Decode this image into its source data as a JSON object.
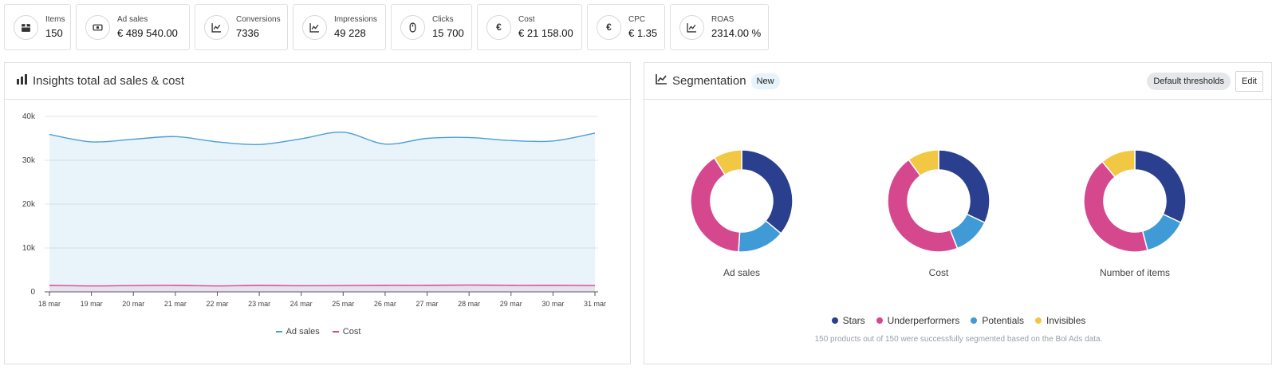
{
  "kpis": [
    {
      "icon": "items-box-icon",
      "label": "Items",
      "value": "150"
    },
    {
      "icon": "ad-sales-money-icon",
      "label": "Ad sales",
      "value": "€ 489 540.00"
    },
    {
      "icon": "conversions-trend-icon",
      "label": "Conversions",
      "value": "7336"
    },
    {
      "icon": "impressions-trend-icon",
      "label": "Impressions",
      "value": "49 228"
    },
    {
      "icon": "mouse-icon",
      "label": "Clicks",
      "value": "15 700"
    },
    {
      "icon": "euro-icon",
      "label": "Cost",
      "value": "€ 21 158.00"
    },
    {
      "icon": "euro-icon",
      "label": "CPC",
      "value": "€ 1.35"
    },
    {
      "icon": "roas-trend-icon",
      "label": "ROAS",
      "value": "2314.00 %"
    }
  ],
  "insights": {
    "title": "Insights total ad sales & cost"
  },
  "segmentation": {
    "title": "Segmentation",
    "badge": "New",
    "thresholds_label": "Default thresholds",
    "edit_label": "Edit",
    "legend": [
      {
        "name": "Stars",
        "color": "#2b3f8f"
      },
      {
        "name": "Underperformers",
        "color": "#d6488e"
      },
      {
        "name": "Potentials",
        "color": "#3f9ad6"
      },
      {
        "name": "Invisibles",
        "color": "#f2c744"
      }
    ],
    "note": "150 products out of 150 were successfully segmented based on the Bol Ads data."
  },
  "chart_data": [
    {
      "type": "area",
      "title": "",
      "categories": [
        "18 mar",
        "19 mar",
        "20 mar",
        "21 mar",
        "22 mar",
        "23 mar",
        "24 mar",
        "25 mar",
        "26 mar",
        "27 mar",
        "28 mar",
        "29 mar",
        "30 mar",
        "31 mar"
      ],
      "series": [
        {
          "name": "Ad sales",
          "color": "#4a9fd8",
          "values": [
            35900,
            34200,
            34800,
            35400,
            34200,
            33600,
            34900,
            36400,
            33700,
            35000,
            35200,
            34500,
            34400,
            36200
          ]
        },
        {
          "name": "Cost",
          "color": "#d6488e",
          "values": [
            1500,
            1350,
            1450,
            1500,
            1350,
            1500,
            1400,
            1450,
            1500,
            1500,
            1550,
            1500,
            1500,
            1450
          ]
        }
      ],
      "yticks": [
        "0",
        "10k",
        "20k",
        "30k",
        "40k"
      ],
      "ylim": [
        0,
        40000
      ],
      "grid": true,
      "legend": "bottom"
    },
    {
      "type": "pie",
      "label": "Ad sales",
      "segments": [
        {
          "name": "Stars",
          "value": 36
        },
        {
          "name": "Potentials",
          "value": 15
        },
        {
          "name": "Underperformers",
          "value": 40
        },
        {
          "name": "Invisibles",
          "value": 9
        }
      ]
    },
    {
      "type": "pie",
      "label": "Cost",
      "segments": [
        {
          "name": "Stars",
          "value": 32
        },
        {
          "name": "Potentials",
          "value": 12
        },
        {
          "name": "Underperformers",
          "value": 46
        },
        {
          "name": "Invisibles",
          "value": 10
        }
      ]
    },
    {
      "type": "pie",
      "label": "Number of items",
      "segments": [
        {
          "name": "Stars",
          "value": 32
        },
        {
          "name": "Potentials",
          "value": 14
        },
        {
          "name": "Underperformers",
          "value": 43
        },
        {
          "name": "Invisibles",
          "value": 11
        }
      ]
    }
  ]
}
